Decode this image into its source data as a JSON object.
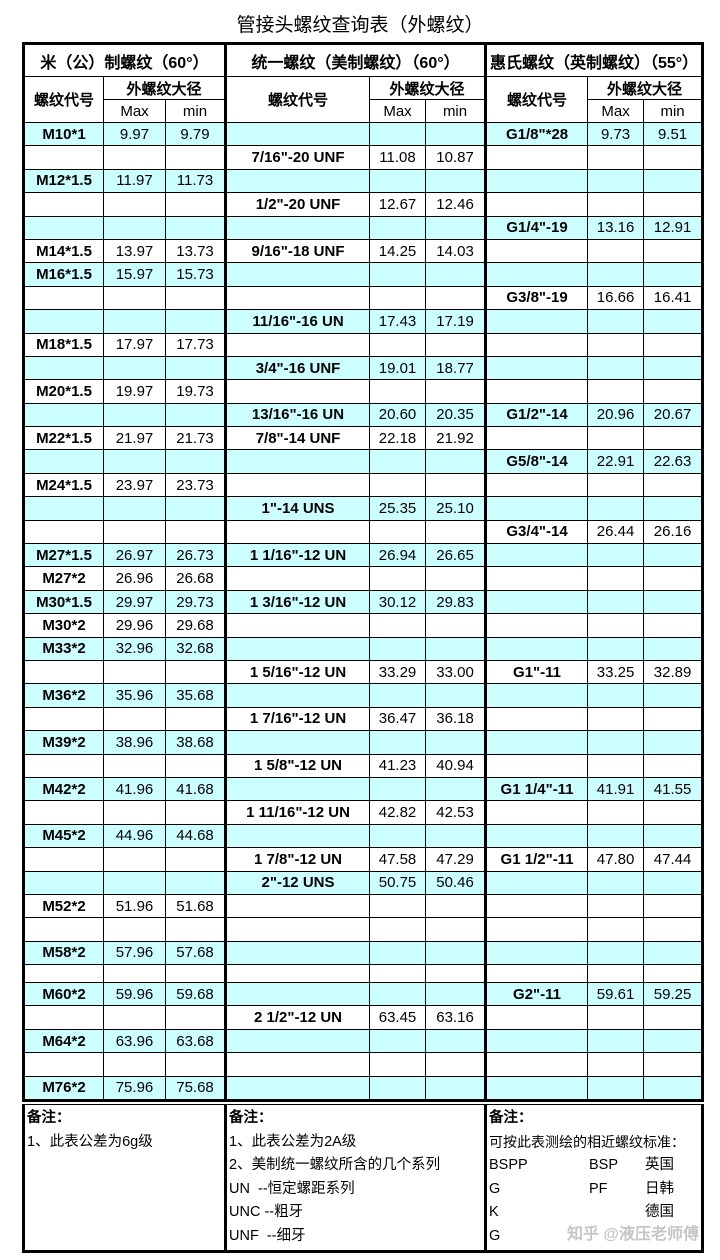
{
  "title": "管接头螺纹查询表（外螺纹）",
  "sections": [
    {
      "heading": "米（公）制螺纹（60°）",
      "code_header": "螺纹代号",
      "diam_header": "外螺纹大径",
      "max": "Max",
      "min": "min"
    },
    {
      "heading": "统一螺纹（美制螺纹）（60°）",
      "code_header": "螺纹代号",
      "diam_header": "外螺纹大径",
      "max": "Max",
      "min": "min"
    },
    {
      "heading": "惠氏螺纹（英制螺纹）（55°）",
      "code_header": "螺纹代号",
      "diam_header": "外螺纹大径",
      "max": "Max",
      "min": "min"
    }
  ],
  "colors": {
    "row_highlight": "#ccffff",
    "border": "#000000"
  },
  "rows": [
    {
      "bg": "cyan",
      "c": [
        [
          "M10*1",
          "9.97",
          "9.79"
        ],
        [
          "",
          "",
          ""
        ],
        [
          "G1/8\"*28",
          "9.73",
          "9.51"
        ]
      ]
    },
    {
      "bg": "white",
      "c": [
        [
          "",
          "",
          ""
        ],
        [
          "7/16\"-20 UNF",
          "11.08",
          "10.87"
        ],
        [
          "",
          "",
          ""
        ]
      ]
    },
    {
      "bg": "cyan",
      "c": [
        [
          "M12*1.5",
          "11.97",
          "11.73"
        ],
        [
          "",
          "",
          ""
        ],
        [
          "",
          "",
          ""
        ]
      ]
    },
    {
      "bg": "white",
      "c": [
        [
          "",
          "",
          ""
        ],
        [
          "1/2\"-20 UNF",
          "12.67",
          "12.46"
        ],
        [
          "",
          "",
          ""
        ]
      ]
    },
    {
      "bg": "cyan",
      "c": [
        [
          "",
          "",
          ""
        ],
        [
          "",
          "",
          ""
        ],
        [
          "G1/4\"-19",
          "13.16",
          "12.91"
        ]
      ]
    },
    {
      "bg": "white",
      "c": [
        [
          "M14*1.5",
          "13.97",
          "13.73"
        ],
        [
          "9/16\"-18 UNF",
          "14.25",
          "14.03"
        ],
        [
          "",
          "",
          ""
        ]
      ]
    },
    {
      "bg": "cyan",
      "c": [
        [
          "M16*1.5",
          "15.97",
          "15.73"
        ],
        [
          "",
          "",
          ""
        ],
        [
          "",
          "",
          ""
        ]
      ]
    },
    {
      "bg": "white",
      "c": [
        [
          "",
          "",
          ""
        ],
        [
          "",
          "",
          ""
        ],
        [
          "G3/8\"-19",
          "16.66",
          "16.41"
        ]
      ]
    },
    {
      "bg": "cyan",
      "c": [
        [
          "",
          "",
          ""
        ],
        [
          "11/16\"-16 UN",
          "17.43",
          "17.19"
        ],
        [
          "",
          "",
          ""
        ]
      ]
    },
    {
      "bg": "white",
      "c": [
        [
          "M18*1.5",
          "17.97",
          "17.73"
        ],
        [
          "",
          "",
          ""
        ],
        [
          "",
          "",
          ""
        ]
      ]
    },
    {
      "bg": "cyan",
      "c": [
        [
          "",
          "",
          ""
        ],
        [
          "3/4\"-16 UNF",
          "19.01",
          "18.77"
        ],
        [
          "",
          "",
          ""
        ]
      ]
    },
    {
      "bg": "white",
      "c": [
        [
          "M20*1.5",
          "19.97",
          "19.73"
        ],
        [
          "",
          "",
          ""
        ],
        [
          "",
          "",
          ""
        ]
      ]
    },
    {
      "bg": "cyan",
      "c": [
        [
          "",
          "",
          ""
        ],
        [
          "13/16\"-16 UN",
          "20.60",
          "20.35"
        ],
        [
          "G1/2\"-14",
          "20.96",
          "20.67"
        ]
      ]
    },
    {
      "bg": "white",
      "c": [
        [
          "M22*1.5",
          "21.97",
          "21.73"
        ],
        [
          "7/8\"-14 UNF",
          "22.18",
          "21.92"
        ],
        [
          "",
          "",
          ""
        ]
      ]
    },
    {
      "bg": "cyan",
      "c": [
        [
          "",
          "",
          ""
        ],
        [
          "",
          "",
          ""
        ],
        [
          "G5/8\"-14",
          "22.91",
          "22.63"
        ]
      ]
    },
    {
      "bg": "white",
      "c": [
        [
          "M24*1.5",
          "23.97",
          "23.73"
        ],
        [
          "",
          "",
          ""
        ],
        [
          "",
          "",
          ""
        ]
      ]
    },
    {
      "bg": "cyan",
      "c": [
        [
          "",
          "",
          ""
        ],
        [
          "1\"-14 UNS",
          "25.35",
          "25.10"
        ],
        [
          "",
          "",
          ""
        ]
      ]
    },
    {
      "bg": "white",
      "c": [
        [
          "",
          "",
          ""
        ],
        [
          "",
          "",
          ""
        ],
        [
          "G3/4\"-14",
          "26.44",
          "26.16"
        ]
      ]
    },
    {
      "bg": "cyan",
      "c": [
        [
          "M27*1.5",
          "26.97",
          "26.73"
        ],
        [
          "1 1/16\"-12 UN",
          "26.94",
          "26.65"
        ],
        [
          "",
          "",
          ""
        ]
      ]
    },
    {
      "bg": "white",
      "c": [
        [
          "M27*2",
          "26.96",
          "26.68"
        ],
        [
          "",
          "",
          ""
        ],
        [
          "",
          "",
          ""
        ]
      ]
    },
    {
      "bg": "cyan",
      "c": [
        [
          "M30*1.5",
          "29.97",
          "29.73"
        ],
        [
          "1 3/16\"-12 UN",
          "30.12",
          "29.83"
        ],
        [
          "",
          "",
          ""
        ]
      ]
    },
    {
      "bg": "white",
      "c": [
        [
          "M30*2",
          "29.96",
          "29.68"
        ],
        [
          "",
          "",
          ""
        ],
        [
          "",
          "",
          ""
        ]
      ]
    },
    {
      "bg": "cyan",
      "c": [
        [
          "M33*2",
          "32.96",
          "32.68"
        ],
        [
          "",
          "",
          ""
        ],
        [
          "",
          "",
          ""
        ]
      ]
    },
    {
      "bg": "white",
      "c": [
        [
          "",
          "",
          ""
        ],
        [
          "1 5/16\"-12 UN",
          "33.29",
          "33.00"
        ],
        [
          "G1\"-11",
          "33.25",
          "32.89"
        ]
      ]
    },
    {
      "bg": "cyan",
      "c": [
        [
          "M36*2",
          "35.96",
          "35.68"
        ],
        [
          "",
          "",
          ""
        ],
        [
          "",
          "",
          ""
        ]
      ]
    },
    {
      "bg": "white",
      "c": [
        [
          "",
          "",
          ""
        ],
        [
          "1 7/16\"-12 UN",
          "36.47",
          "36.18"
        ],
        [
          "",
          "",
          ""
        ]
      ]
    },
    {
      "bg": "cyan",
      "c": [
        [
          "M39*2",
          "38.96",
          "38.68"
        ],
        [
          "",
          "",
          ""
        ],
        [
          "",
          "",
          ""
        ]
      ]
    },
    {
      "bg": "white",
      "c": [
        [
          "",
          "",
          ""
        ],
        [
          "1 5/8\"-12 UN",
          "41.23",
          "40.94"
        ],
        [
          "",
          "",
          ""
        ]
      ]
    },
    {
      "bg": "cyan",
      "c": [
        [
          "M42*2",
          "41.96",
          "41.68"
        ],
        [
          "",
          "",
          ""
        ],
        [
          "G1 1/4\"-11",
          "41.91",
          "41.55"
        ]
      ]
    },
    {
      "bg": "white",
      "c": [
        [
          "",
          "",
          ""
        ],
        [
          "1 11/16\"-12 UN",
          "42.82",
          "42.53"
        ],
        [
          "",
          "",
          ""
        ]
      ]
    },
    {
      "bg": "cyan",
      "c": [
        [
          "M45*2",
          "44.96",
          "44.68"
        ],
        [
          "",
          "",
          ""
        ],
        [
          "",
          "",
          ""
        ]
      ]
    },
    {
      "bg": "white",
      "c": [
        [
          "",
          "",
          ""
        ],
        [
          "1 7/8\"-12 UN",
          "47.58",
          "47.29"
        ],
        [
          "G1 1/2\"-11",
          "47.80",
          "47.44"
        ]
      ]
    },
    {
      "bg": "cyan",
      "c": [
        [
          "",
          "",
          ""
        ],
        [
          "2\"-12 UNS",
          "50.75",
          "50.46"
        ],
        [
          "",
          "",
          ""
        ]
      ]
    },
    {
      "bg": "white",
      "c": [
        [
          "M52*2",
          "51.96",
          "51.68"
        ],
        [
          "",
          "",
          ""
        ],
        [
          "",
          "",
          ""
        ]
      ]
    },
    {
      "bg": "white",
      "c": [
        [
          "",
          "",
          ""
        ],
        [
          "",
          "",
          ""
        ],
        [
          "",
          "",
          ""
        ]
      ]
    },
    {
      "bg": "cyan",
      "c": [
        [
          "M58*2",
          "57.96",
          "57.68"
        ],
        [
          "",
          "",
          ""
        ],
        [
          "",
          "",
          ""
        ]
      ]
    },
    {
      "bg": "white",
      "short": true,
      "c": [
        [
          "",
          "",
          ""
        ],
        [
          "",
          "",
          ""
        ],
        [
          "",
          "",
          ""
        ]
      ]
    },
    {
      "bg": "cyan",
      "c": [
        [
          "M60*2",
          "59.96",
          "59.68"
        ],
        [
          "",
          "",
          ""
        ],
        [
          "G2\"-11",
          "59.61",
          "59.25"
        ]
      ]
    },
    {
      "bg": "white",
      "c": [
        [
          "",
          "",
          ""
        ],
        [
          "2 1/2\"-12 UN",
          "63.45",
          "63.16"
        ],
        [
          "",
          "",
          ""
        ]
      ]
    },
    {
      "bg": "cyan",
      "c": [
        [
          "M64*2",
          "63.96",
          "63.68"
        ],
        [
          "",
          "",
          ""
        ],
        [
          "",
          "",
          ""
        ]
      ]
    },
    {
      "bg": "white",
      "c": [
        [
          "",
          "",
          ""
        ],
        [
          "",
          "",
          ""
        ],
        [
          "",
          "",
          ""
        ]
      ]
    },
    {
      "bg": "cyan",
      "c": [
        [
          "M76*2",
          "75.96",
          "75.68"
        ],
        [
          "",
          "",
          ""
        ],
        [
          "",
          "",
          ""
        ]
      ]
    }
  ],
  "notes": {
    "metric": {
      "heading": "备注：",
      "lines": [
        "1、此表公差为6g级"
      ]
    },
    "unified": {
      "heading": "备注：",
      "lines": [
        "1、此表公差为2A级",
        "2、美制统一螺纹所含的几个系列",
        "UN  --恒定螺距系列",
        "UNC --粗牙",
        "UNF  --细牙"
      ]
    },
    "whitworth": {
      "heading": "备注：",
      "intro": "可按此表测绘的相近螺纹标准：",
      "grid": [
        [
          "BSPP",
          "BSP",
          "英国"
        ],
        [
          "G",
          "PF",
          "日韩"
        ],
        [
          "K",
          "",
          "德国"
        ],
        [
          "G",
          "",
          ""
        ]
      ]
    }
  },
  "watermark": "知乎 @液压老师傅"
}
